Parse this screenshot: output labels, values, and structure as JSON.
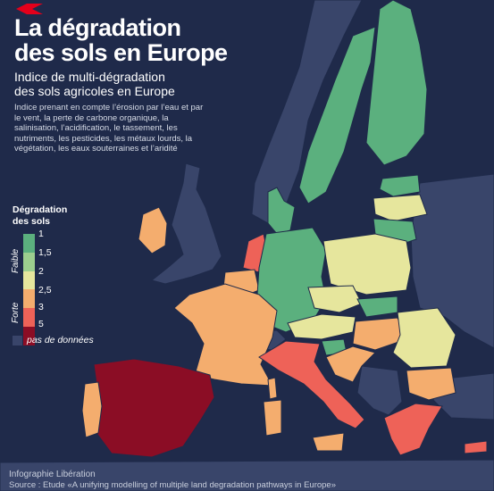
{
  "title_line1": "La dégradation",
  "title_line2": "des sols en Europe",
  "subtitle_line1": "Indice de multi-dégradation",
  "subtitle_line2": "des sols agricoles en Europe",
  "description": "Indice prenant en compte l’érosion par l’eau et par le vent, la perte de carbone organique, la salinisation, l’acidification, le tassement, les nutriments, les pesticides, les métaux lourds, la végétation, les eaux souterraines et l’aridité",
  "legend": {
    "title_line1": "Dégradation",
    "title_line2": "des sols",
    "low_label": "Faible",
    "high_label": "Forte",
    "ticks": [
      "1",
      "1,5",
      "2",
      "2,5",
      "3",
      "5"
    ],
    "colors": [
      "#5bb07e",
      "#9ccf8e",
      "#e6e69d",
      "#f4ad6e",
      "#ee6258",
      "#8b0d25"
    ],
    "no_data_label": "pas de données",
    "no_data_color": "#39456a"
  },
  "credit": "Infographie Libération",
  "source": "Source : Etude «A unifying modelling of multiple land degradation pathways in Europe»",
  "countries": [
    {
      "name": "Norway",
      "color": "#39456a"
    },
    {
      "name": "Sweden",
      "color": "#5bb07e"
    },
    {
      "name": "Finland",
      "color": "#5bb07e"
    },
    {
      "name": "Estonia",
      "color": "#5bb07e"
    },
    {
      "name": "Latvia",
      "color": "#e6e69d"
    },
    {
      "name": "Lithuania",
      "color": "#5bb07e"
    },
    {
      "name": "Ireland",
      "color": "#f4ad6e"
    },
    {
      "name": "United Kingdom",
      "color": "#39456a"
    },
    {
      "name": "Denmark",
      "color": "#5bb07e"
    },
    {
      "name": "Netherlands",
      "color": "#ee6258"
    },
    {
      "name": "Belgium",
      "color": "#f4ad6e"
    },
    {
      "name": "Germany",
      "color": "#5bb07e"
    },
    {
      "name": "Poland",
      "color": "#e6e69d"
    },
    {
      "name": "France",
      "color": "#f4ad6e"
    },
    {
      "name": "Luxembourg",
      "color": "#e6e69d"
    },
    {
      "name": "Czechia",
      "color": "#e6e69d"
    },
    {
      "name": "Slovakia",
      "color": "#5bb07e"
    },
    {
      "name": "Austria",
      "color": "#e6e69d"
    },
    {
      "name": "Hungary",
      "color": "#f4ad6e"
    },
    {
      "name": "Romania",
      "color": "#e6e69d"
    },
    {
      "name": "Slovenia",
      "color": "#5bb07e"
    },
    {
      "name": "Croatia",
      "color": "#f4ad6e"
    },
    {
      "name": "Bulgaria",
      "color": "#f4ad6e"
    },
    {
      "name": "Italy",
      "color": "#ee6258"
    },
    {
      "name": "Greece",
      "color": "#ee6258"
    },
    {
      "name": "Spain",
      "color": "#8b0d25"
    },
    {
      "name": "Portugal",
      "color": "#f4ad6e"
    },
    {
      "name": "Sardinia",
      "color": "#f4ad6e"
    },
    {
      "name": "Corsica",
      "color": "#f4ad6e"
    },
    {
      "name": "Sicily",
      "color": "#f4ad6e"
    },
    {
      "name": "Cyprus",
      "color": "#ee6258"
    },
    {
      "name": "Balkans",
      "color": "#39456a"
    },
    {
      "name": "Belarus Ukraine",
      "color": "#39456a"
    },
    {
      "name": "Switzerland",
      "color": "#39456a"
    },
    {
      "name": "Turkey",
      "color": "#39456a"
    },
    {
      "name": "North Africa",
      "color": "#39456a"
    }
  ]
}
